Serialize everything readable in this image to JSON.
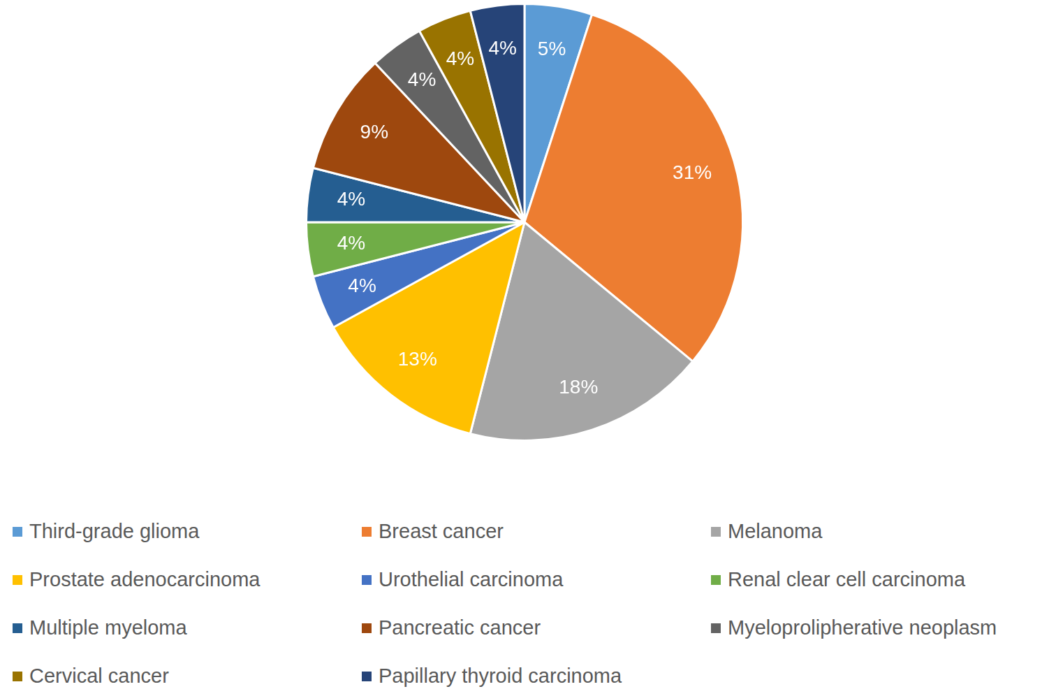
{
  "chart_data": {
    "type": "pie",
    "categories": [
      "Third-grade glioma",
      "Breast cancer",
      "Melanoma",
      "Prostate adenocarcinoma",
      "Urothelial carcinoma",
      "Renal clear cell carcinoma",
      "Multiple myeloma",
      "Pancreatic cancer",
      "Myeloprolipherative neoplasm",
      "Cervical cancer",
      "Papillary thyroid carcinoma"
    ],
    "values": [
      5,
      31,
      18,
      13,
      4,
      4,
      4,
      9,
      4,
      4,
      4
    ],
    "value_labels": [
      "5%",
      "31%",
      "18%",
      "13%",
      "4%",
      "4%",
      "4%",
      "9%",
      "4%",
      "4%",
      "4%"
    ],
    "colors": [
      "#5b9bd5",
      "#ed7d31",
      "#a5a5a5",
      "#ffc000",
      "#4472c4",
      "#70ad47",
      "#255e91",
      "#9e480e",
      "#636363",
      "#997300",
      "#264478"
    ],
    "data_labels": true,
    "legend": "bottom"
  }
}
